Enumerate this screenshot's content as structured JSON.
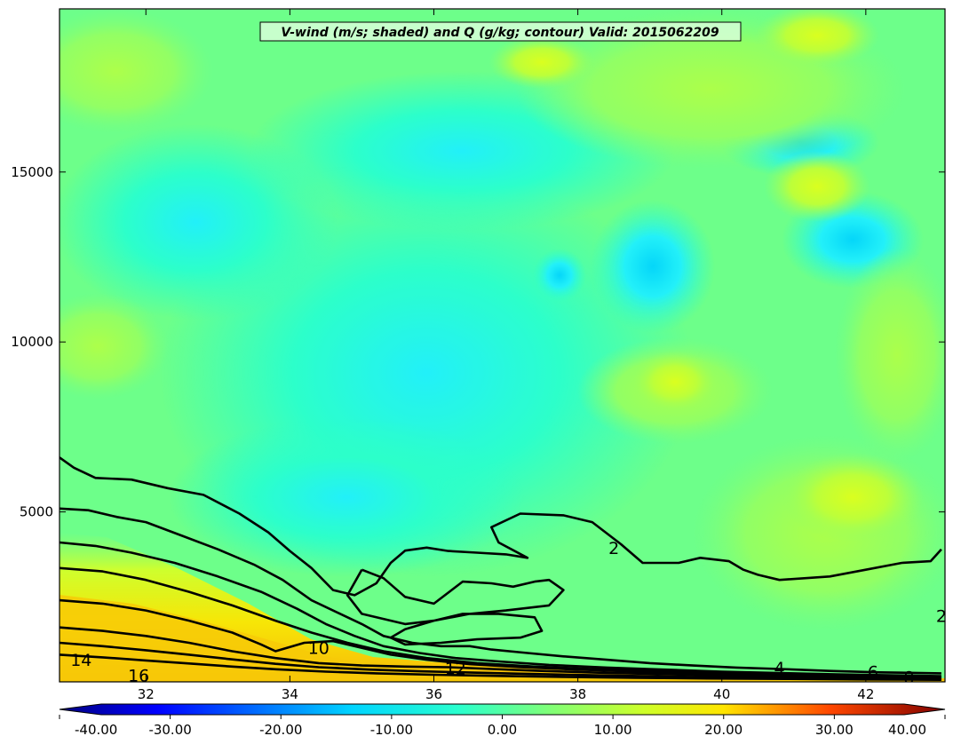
{
  "chart_data": {
    "type": "heatmap",
    "subtype": "filled-contour cross-section with line contours",
    "title": "V-wind (m/s; shaded) and Q (g/kg; contour) Valid: 2015062209",
    "xlabel": "",
    "ylabel": "",
    "xlim": [
      30.8,
      43.1
    ],
    "ylim": [
      0,
      19800
    ],
    "x_ticks": [
      32,
      34,
      36,
      38,
      40,
      42
    ],
    "y_ticks": [
      5000,
      10000,
      15000
    ],
    "grid": false,
    "colorbar": {
      "orientation": "horizontal",
      "position": "bottom",
      "extend": "both",
      "vmin": -40,
      "vmax": 40,
      "tick_values": [
        -40,
        -30,
        -20,
        -10,
        0,
        10,
        20,
        30,
        40
      ],
      "tick_labels": [
        "-40.00",
        "-30.00",
        "-20.00",
        "-10.00",
        "0.00",
        "10.00",
        "20.00",
        "30.00",
        "40.00"
      ]
    },
    "contours": {
      "variable": "Q (g/kg)",
      "color": "#000000",
      "levels": [
        2,
        4,
        6,
        8,
        10,
        12,
        14,
        16
      ],
      "labels": [
        {
          "text": "2",
          "x": 38.5,
          "y": 3950
        },
        {
          "text": "4",
          "x": 40.8,
          "y": 420
        },
        {
          "text": "6",
          "x": 42.1,
          "y": 300
        },
        {
          "text": "8",
          "x": 42.6,
          "y": 150
        },
        {
          "text": "10",
          "x": 34.4,
          "y": 1000
        },
        {
          "text": "12",
          "x": 36.3,
          "y": 400
        },
        {
          "text": "14",
          "x": 31.1,
          "y": 650
        },
        {
          "text": "16",
          "x": 31.9,
          "y": 200
        },
        {
          "text": "2",
          "x": 43.05,
          "y": 1950
        }
      ],
      "lines": [
        {
          "level": 2,
          "points": [
            [
              30.8,
              6600
            ],
            [
              31.0,
              6300
            ],
            [
              31.3,
              6000
            ],
            [
              31.8,
              5950
            ],
            [
              32.3,
              5700
            ],
            [
              32.8,
              5500
            ],
            [
              33.3,
              4950
            ],
            [
              33.7,
              4400
            ],
            [
              34.0,
              3850
            ],
            [
              34.3,
              3350
            ],
            [
              34.6,
              2700
            ],
            [
              34.9,
              2550
            ],
            [
              35.2,
              2900
            ],
            [
              35.4,
              3500
            ],
            [
              35.6,
              3860
            ],
            [
              35.9,
              3950
            ],
            [
              36.2,
              3850
            ],
            [
              36.6,
              3800
            ],
            [
              37.0,
              3750
            ],
            [
              37.3,
              3650
            ],
            [
              36.9,
              4100
            ],
            [
              36.8,
              4550
            ],
            [
              37.2,
              4950
            ],
            [
              37.8,
              4900
            ],
            [
              38.2,
              4700
            ],
            [
              38.6,
              4050
            ],
            [
              38.9,
              3500
            ],
            [
              39.4,
              3500
            ],
            [
              39.7,
              3650
            ],
            [
              40.1,
              3550
            ],
            [
              40.3,
              3300
            ],
            [
              40.5,
              3150
            ],
            [
              40.8,
              3000
            ],
            [
              41.5,
              3100
            ],
            [
              42.0,
              3300
            ],
            [
              42.5,
              3500
            ],
            [
              42.9,
              3550
            ],
            [
              43.05,
              3900
            ]
          ]
        },
        {
          "level": 4,
          "points": [
            [
              30.8,
              5100
            ],
            [
              31.2,
              5050
            ],
            [
              31.6,
              4850
            ],
            [
              32.0,
              4700
            ],
            [
              32.5,
              4300
            ],
            [
              33.0,
              3900
            ],
            [
              33.5,
              3450
            ],
            [
              33.9,
              3000
            ],
            [
              34.3,
              2400
            ],
            [
              34.7,
              2000
            ],
            [
              35.0,
              1700
            ],
            [
              35.3,
              1350
            ],
            [
              35.7,
              1150
            ],
            [
              36.1,
              1050
            ],
            [
              36.5,
              1050
            ],
            [
              36.8,
              950
            ],
            [
              37.3,
              850
            ],
            [
              37.8,
              750
            ],
            [
              38.4,
              650
            ],
            [
              39.0,
              550
            ],
            [
              39.6,
              480
            ],
            [
              40.2,
              420
            ],
            [
              40.8,
              380
            ],
            [
              41.5,
              320
            ],
            [
              42.2,
              280
            ],
            [
              43.05,
              250
            ]
          ]
        },
        {
          "level": 6,
          "points": [
            [
              30.8,
              4100
            ],
            [
              31.3,
              4000
            ],
            [
              31.8,
              3800
            ],
            [
              32.4,
              3500
            ],
            [
              33.0,
              3100
            ],
            [
              33.6,
              2650
            ],
            [
              34.1,
              2150
            ],
            [
              34.5,
              1700
            ],
            [
              34.9,
              1350
            ],
            [
              35.3,
              1050
            ],
            [
              35.8,
              850
            ],
            [
              36.3,
              700
            ],
            [
              36.9,
              600
            ],
            [
              37.6,
              500
            ],
            [
              38.4,
              420
            ],
            [
              39.2,
              360
            ],
            [
              40.0,
              300
            ],
            [
              40.8,
              260
            ],
            [
              41.6,
              220
            ],
            [
              42.4,
              190
            ],
            [
              43.05,
              170
            ]
          ]
        },
        {
          "level": 8,
          "points": [
            [
              30.8,
              3350
            ],
            [
              31.4,
              3250
            ],
            [
              32.0,
              3000
            ],
            [
              32.6,
              2650
            ],
            [
              33.2,
              2250
            ],
            [
              33.8,
              1800
            ],
            [
              34.3,
              1450
            ],
            [
              34.8,
              1150
            ],
            [
              35.3,
              900
            ],
            [
              35.9,
              700
            ],
            [
              36.6,
              550
            ],
            [
              37.4,
              450
            ],
            [
              38.2,
              380
            ],
            [
              39.0,
              320
            ],
            [
              39.8,
              270
            ],
            [
              40.6,
              230
            ],
            [
              41.4,
              190
            ],
            [
              42.2,
              160
            ],
            [
              43.05,
              140
            ]
          ]
        },
        {
          "level": 10,
          "points": [
            [
              30.8,
              2400
            ],
            [
              31.4,
              2300
            ],
            [
              32.0,
              2100
            ],
            [
              32.6,
              1800
            ],
            [
              33.2,
              1450
            ],
            [
              33.6,
              1100
            ],
            [
              33.8,
              900
            ],
            [
              34.2,
              1150
            ],
            [
              34.6,
              1200
            ],
            [
              35.0,
              1000
            ],
            [
              35.4,
              800
            ],
            [
              35.9,
              650
            ],
            [
              36.5,
              520
            ],
            [
              37.2,
              430
            ],
            [
              38.0,
              360
            ],
            [
              38.8,
              300
            ],
            [
              39.6,
              250
            ],
            [
              40.4,
              210
            ],
            [
              41.2,
              170
            ],
            [
              42.0,
              140
            ],
            [
              43.05,
              120
            ]
          ]
        },
        {
          "level": 12,
          "points": [
            [
              30.8,
              1600
            ],
            [
              31.4,
              1500
            ],
            [
              32.0,
              1350
            ],
            [
              32.6,
              1150
            ],
            [
              33.2,
              900
            ],
            [
              33.8,
              700
            ],
            [
              34.4,
              550
            ],
            [
              35.0,
              480
            ],
            [
              35.6,
              450
            ],
            [
              36.2,
              430
            ],
            [
              36.8,
              380
            ],
            [
              37.5,
              320
            ],
            [
              38.3,
              270
            ],
            [
              39.1,
              230
            ],
            [
              39.9,
              190
            ],
            [
              40.7,
              160
            ],
            [
              41.5,
              130
            ],
            [
              42.3,
              110
            ],
            [
              43.05,
              100
            ]
          ]
        },
        {
          "level": 14,
          "points": [
            [
              30.8,
              1150
            ],
            [
              31.4,
              1050
            ],
            [
              32.0,
              930
            ],
            [
              32.6,
              800
            ],
            [
              33.2,
              660
            ],
            [
              33.8,
              530
            ],
            [
              34.4,
              430
            ],
            [
              35.1,
              360
            ],
            [
              35.8,
              310
            ],
            [
              36.6,
              270
            ],
            [
              37.4,
              230
            ],
            [
              38.3,
              190
            ],
            [
              39.2,
              160
            ],
            [
              40.1,
              130
            ],
            [
              41.0,
              110
            ],
            [
              42.0,
              95
            ],
            [
              43.05,
              80
            ]
          ]
        },
        {
          "level": 16,
          "points": [
            [
              30.8,
              800
            ],
            [
              31.4,
              720
            ],
            [
              32.0,
              630
            ],
            [
              32.6,
              540
            ],
            [
              33.2,
              450
            ],
            [
              33.8,
              370
            ],
            [
              34.5,
              300
            ],
            [
              35.2,
              250
            ],
            [
              36.0,
              210
            ],
            [
              36.9,
              175
            ],
            [
              37.8,
              145
            ],
            [
              38.8,
              120
            ],
            [
              39.8,
              100
            ],
            [
              40.9,
              85
            ],
            [
              42.0,
              70
            ],
            [
              43.05,
              60
            ]
          ]
        },
        {
          "level": 2,
          "points": [
            [
              35.0,
              3300
            ],
            [
              35.3,
              3050
            ],
            [
              35.6,
              2500
            ],
            [
              36.0,
              2300
            ],
            [
              36.4,
              2950
            ],
            [
              36.8,
              2900
            ],
            [
              37.1,
              2800
            ],
            [
              37.4,
              2950
            ],
            [
              37.6,
              3000
            ],
            [
              37.8,
              2700
            ],
            [
              37.6,
              2250
            ],
            [
              37.0,
              2100
            ],
            [
              36.5,
              2000
            ],
            [
              36.0,
              1800
            ],
            [
              35.6,
              1550
            ],
            [
              35.4,
              1300
            ],
            [
              35.6,
              1100
            ],
            [
              36.1,
              1150
            ],
            [
              36.6,
              1250
            ],
            [
              37.2,
              1300
            ],
            [
              37.5,
              1500
            ],
            [
              37.4,
              1900
            ],
            [
              36.9,
              2000
            ],
            [
              36.4,
              2000
            ],
            [
              36.0,
              1800
            ],
            [
              35.6,
              1700
            ],
            [
              35.0,
              2000
            ],
            [
              34.8,
              2550
            ],
            [
              35.0,
              3300
            ]
          ]
        }
      ]
    },
    "shading": {
      "variable": "V-wind (m/s)",
      "dominant_range": [
        -10,
        10
      ],
      "notable_regions": [
        {
          "description": "low-level maximum",
          "x_range": [
            30.8,
            34.5
          ],
          "y_range": [
            0,
            2500
          ],
          "value": 15
        },
        {
          "description": "upper-level minimum",
          "x": 38.9,
          "y": 12000,
          "value": -10
        }
      ]
    }
  }
}
